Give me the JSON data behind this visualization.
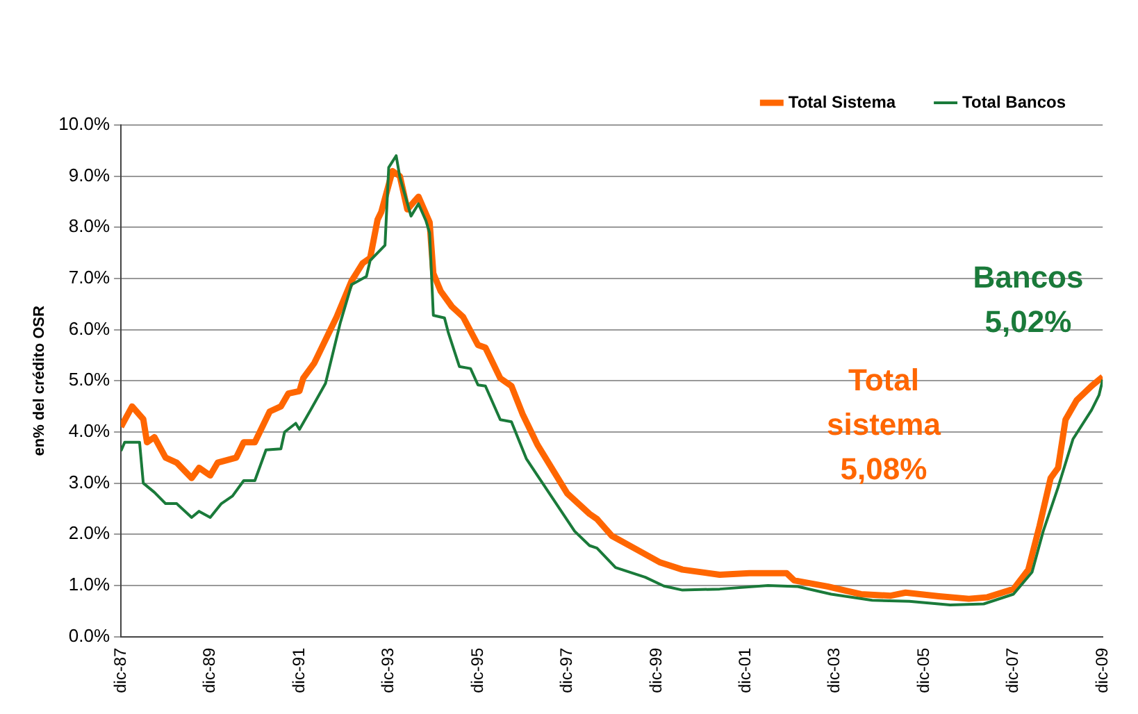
{
  "chart_data": {
    "type": "line",
    "ylabel": "en% del crédito OSR",
    "xlim": [
      "1987-12",
      "2009-12"
    ],
    "xticks": [
      {
        "value": "1987-12",
        "label": "dic-87"
      },
      {
        "value": "1989-12",
        "label": "dic-89"
      },
      {
        "value": "1991-12",
        "label": "dic-91"
      },
      {
        "value": "1993-12",
        "label": "dic-93"
      },
      {
        "value": "1995-12",
        "label": "dic-95"
      },
      {
        "value": "1997-12",
        "label": "dic-97"
      },
      {
        "value": "1999-12",
        "label": "dic-99"
      },
      {
        "value": "2001-12",
        "label": "dic-01"
      },
      {
        "value": "2003-12",
        "label": "dic-03"
      },
      {
        "value": "2005-12",
        "label": "dic-05"
      },
      {
        "value": "2007-12",
        "label": "dic-07"
      },
      {
        "value": "2009-12",
        "label": "dic-09"
      }
    ],
    "ylim": [
      0,
      10
    ],
    "yticks": [
      {
        "value": 0,
        "label": "0.0%"
      },
      {
        "value": 1,
        "label": "1.0%"
      },
      {
        "value": 2,
        "label": "2.0%"
      },
      {
        "value": 3,
        "label": "3.0%"
      },
      {
        "value": 4,
        "label": "4.0%"
      },
      {
        "value": 5,
        "label": "5.0%"
      },
      {
        "value": 6,
        "label": "6.0%"
      },
      {
        "value": 7,
        "label": "7.0%"
      },
      {
        "value": 8,
        "label": "8.0%"
      },
      {
        "value": 9,
        "label": "9.0%"
      },
      {
        "value": 10,
        "label": "10.0%"
      }
    ],
    "grid": "y",
    "legend": "top right",
    "marker": "none",
    "line_style": "solid",
    "annotations": [
      "Total sistema 5,08%",
      "Bancos 5,02%"
    ],
    "series": [
      {
        "name": "Total Sistema",
        "color": "#ff6600",
        "x": [
          "1987-12",
          "1988-03",
          "1988-06",
          "1988-07",
          "1988-09",
          "1988-12",
          "1989-03",
          "1989-07",
          "1989-09",
          "1989-12",
          "1990-02",
          "1990-07",
          "1990-09",
          "1990-12",
          "1991-04",
          "1991-07",
          "1991-09",
          "1991-12",
          "1992-01",
          "1992-04",
          "1992-08",
          "1992-10",
          "1993-02",
          "1993-05",
          "1993-07",
          "1993-09",
          "1993-10",
          "1994-01",
          "1994-03",
          "1994-05",
          "1994-08",
          "1994-11",
          "1994-12",
          "1995-02",
          "1995-05",
          "1995-08",
          "1995-12",
          "1996-02",
          "1996-06",
          "1996-09",
          "1996-12",
          "1997-04",
          "1997-12",
          "1998-06",
          "1998-08",
          "1998-12",
          "1999-07",
          "2000-01",
          "2000-07",
          "2001-05",
          "2002-01",
          "2002-11",
          "2003-01",
          "2003-10",
          "2004-07",
          "2005-03",
          "2005-07",
          "2006-04",
          "2006-12",
          "2007-05",
          "2007-12",
          "2008-04",
          "2008-07",
          "2008-10",
          "2008-12",
          "2009-02",
          "2009-05",
          "2009-09",
          "2009-12"
        ],
        "values": [
          4.1,
          4.5,
          4.25,
          3.8,
          3.9,
          3.5,
          3.4,
          3.1,
          3.3,
          3.15,
          3.4,
          3.5,
          3.8,
          3.8,
          4.4,
          4.5,
          4.75,
          4.8,
          5.05,
          5.35,
          5.95,
          6.25,
          6.95,
          7.3,
          7.4,
          8.15,
          8.3,
          9.1,
          9.0,
          8.35,
          8.6,
          8.1,
          7.1,
          6.75,
          6.45,
          6.25,
          5.7,
          5.65,
          5.05,
          4.9,
          4.35,
          3.75,
          2.8,
          2.4,
          2.3,
          1.97,
          1.69,
          1.45,
          1.31,
          1.21,
          1.24,
          1.24,
          1.1,
          0.98,
          0.83,
          0.8,
          0.86,
          0.79,
          0.74,
          0.77,
          0.93,
          1.31,
          2.16,
          3.1,
          3.3,
          4.24,
          4.62,
          4.9,
          5.08
        ]
      },
      {
        "name": "Total Bancos",
        "color": "#1a7a3a",
        "x": [
          "1987-12",
          "1988-01",
          "1988-05",
          "1988-06",
          "1988-09",
          "1988-12",
          "1989-03",
          "1989-07",
          "1989-09",
          "1989-12",
          "1990-03",
          "1990-06",
          "1990-09",
          "1990-12",
          "1991-03",
          "1991-07",
          "1991-08",
          "1991-11",
          "1991-12",
          "1992-03",
          "1992-07",
          "1992-11",
          "1993-02",
          "1993-06",
          "1993-07",
          "1993-11",
          "1993-12",
          "1994-02",
          "1994-03",
          "1994-06",
          "1994-08",
          "1994-10",
          "1994-11",
          "1994-12",
          "1995-03",
          "1995-04",
          "1995-07",
          "1995-10",
          "1995-12",
          "1996-02",
          "1996-06",
          "1996-09",
          "1997-01",
          "1997-04",
          "1998-02",
          "1998-06",
          "1998-08",
          "1999-01",
          "1999-09",
          "2000-02",
          "2000-07",
          "2001-05",
          "2002-06",
          "2003-02",
          "2003-11",
          "2004-10",
          "2005-08",
          "2006-07",
          "2007-04",
          "2007-12",
          "2008-05",
          "2008-08",
          "2008-12",
          "2009-04",
          "2009-09",
          "2009-11",
          "2009-12"
        ],
        "values": [
          3.63,
          3.8,
          3.8,
          3.0,
          2.82,
          2.6,
          2.6,
          2.33,
          2.45,
          2.33,
          2.6,
          2.75,
          3.05,
          3.05,
          3.65,
          3.67,
          4.0,
          4.17,
          4.05,
          4.43,
          4.95,
          6.14,
          6.88,
          7.04,
          7.35,
          7.65,
          9.17,
          9.4,
          8.98,
          8.22,
          8.46,
          8.13,
          7.89,
          6.28,
          6.23,
          5.95,
          5.28,
          5.24,
          4.92,
          4.9,
          4.24,
          4.2,
          3.48,
          3.15,
          2.06,
          1.78,
          1.73,
          1.35,
          1.16,
          0.99,
          0.91,
          0.93,
          1.0,
          0.98,
          0.83,
          0.71,
          0.69,
          0.62,
          0.64,
          0.83,
          1.26,
          2.06,
          2.92,
          3.86,
          4.43,
          4.72,
          5.02
        ]
      }
    ]
  }
}
